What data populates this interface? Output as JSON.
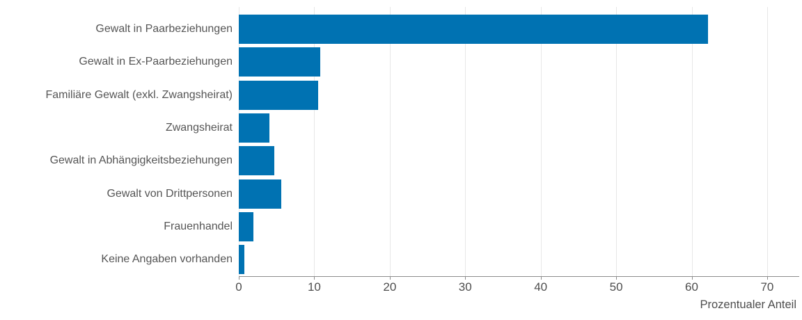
{
  "chart_data": {
    "type": "bar",
    "orientation": "horizontal",
    "title": "",
    "xlabel": "Prozentualer Anteil",
    "ylabel": "",
    "categories": [
      "Gewalt in Paarbeziehungen",
      "Gewalt in Ex-Paarbeziehungen",
      "Familiäre Gewalt (exkl. Zwangsheirat)",
      "Zwangsheirat",
      "Gewalt in Abhängigkeitsbeziehungen",
      "Gewalt von Drittpersonen",
      "Frauenhandel",
      "Keine Angaben vorhanden"
    ],
    "values": [
      62.2,
      10.8,
      10.5,
      4.1,
      4.7,
      5.6,
      1.9,
      0.7
    ],
    "xlim": [
      0,
      74.25
    ],
    "xticks": [
      0,
      10,
      20,
      30,
      40,
      50,
      60,
      70
    ],
    "grid": true,
    "legend": false,
    "bar_color": "#0072b2"
  },
  "colors": {
    "bar": "#0072b2",
    "gridline": "#e7e7e7",
    "axis_line": "#8c8c8c",
    "tick_text": "#4d4d4d",
    "label_text": "#555555",
    "background": "#ffffff"
  }
}
